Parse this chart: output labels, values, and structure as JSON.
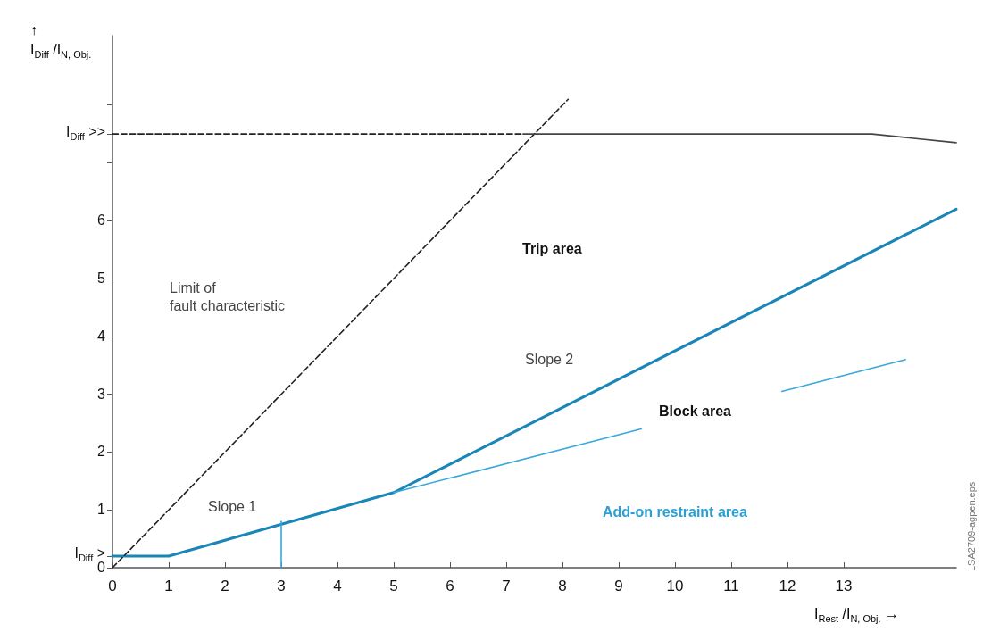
{
  "chart_data": {
    "type": "line",
    "xlabel": "I$_{Rest}$ /I$_{N, Obj.}$ →",
    "ylabel": "↑\nI$_{Diff}$ /I$_{N, Obj.}$",
    "xlim": [
      0,
      15
    ],
    "ylim": [
      0,
      9.2
    ],
    "xticks": [
      0,
      1,
      2,
      3,
      4,
      5,
      6,
      7,
      8,
      9,
      10,
      11,
      12,
      13
    ],
    "yticks": [
      0,
      {
        "value": 0.2,
        "label": "I$_{Diff}$ >"
      },
      1,
      2,
      3,
      4,
      5,
      6,
      {
        "value": 7,
        "label": null
      },
      {
        "value": 7.5,
        "label": "I$_{Diff}$ >>"
      },
      {
        "value": 8,
        "label": null
      }
    ],
    "grid": false,
    "marker": "none",
    "series": [
      {
        "color": "#1a86b8",
        "x": [
          0,
          1,
          5,
          15
        ],
        "values": [
          0.2,
          0.2,
          1.3,
          6.2
        ],
        "line_style": "solid"
      },
      {
        "color": "#3aa8d8",
        "x": [
          3,
          3
        ],
        "values": [
          0,
          0.8
        ],
        "line_style": "solid"
      },
      {
        "color": "#3aa8d8",
        "x": [
          5,
          9.4
        ],
        "values": [
          1.3,
          2.4
        ],
        "line_style": "solid"
      },
      {
        "color": "#3aa8d8",
        "x": [
          11.9,
          14.1
        ],
        "values": [
          3.05,
          3.6
        ],
        "line_style": "solid"
      },
      {
        "color": "#222222",
        "x": [
          0,
          8.1
        ],
        "values": [
          0,
          8.1
        ],
        "line_style": "dashed"
      },
      {
        "color": "#222222",
        "x": [
          0,
          7.3
        ],
        "values": [
          7.5,
          7.5
        ],
        "line_style": "dashed"
      },
      {
        "color": "#444444",
        "x": [
          7.3,
          13.5,
          15
        ],
        "values": [
          7.5,
          7.5,
          7.35
        ],
        "line_style": "solid"
      }
    ],
    "annotations": [
      "Trip area",
      "Limit of\nfault characteristic",
      "Slope 1",
      "Slope 2",
      "Block area",
      "Add-on restraint area",
      "LSA2709-agpen.eps"
    ]
  }
}
